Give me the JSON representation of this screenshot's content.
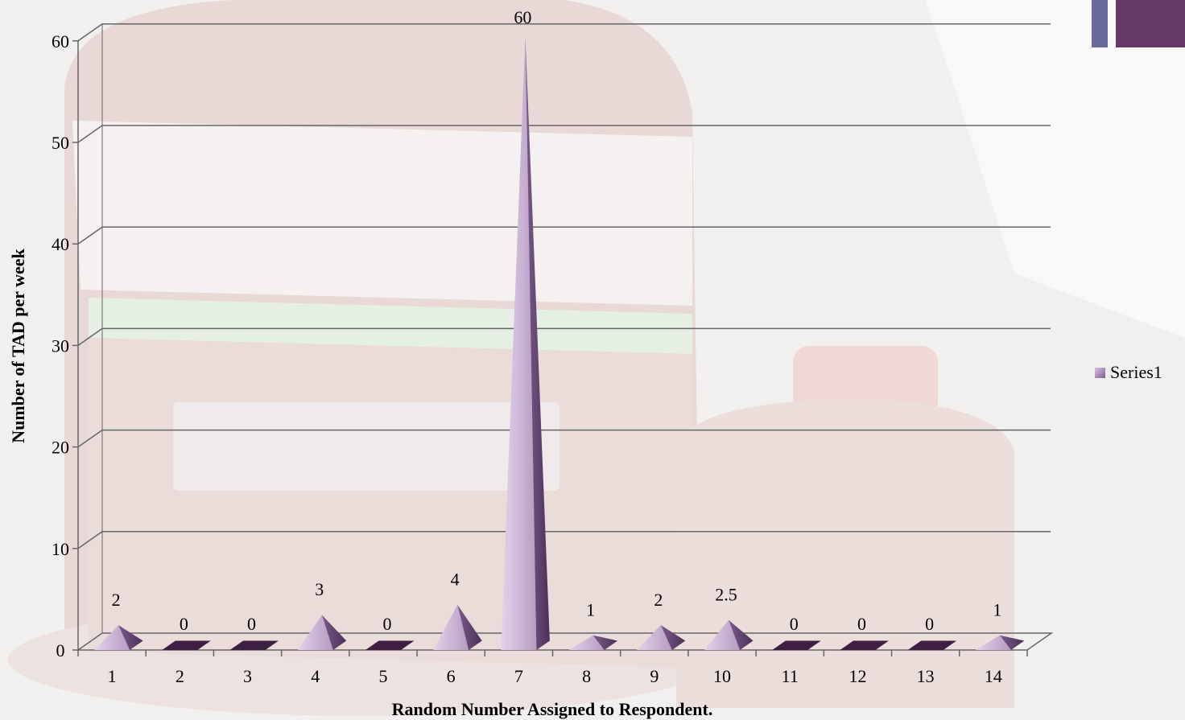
{
  "chart_data": {
    "type": "bar",
    "style": "3d-pyramid",
    "categories": [
      "1",
      "2",
      "3",
      "4",
      "5",
      "6",
      "7",
      "8",
      "9",
      "10",
      "11",
      "12",
      "13",
      "14"
    ],
    "series": [
      {
        "name": "Series1",
        "values": [
          2,
          0,
          0,
          3,
          0,
          4,
          60,
          1,
          2,
          2.5,
          0,
          0,
          0,
          1
        ]
      }
    ],
    "data_labels": [
      "2",
      "0",
      "0",
      "3",
      "0",
      "4",
      "60",
      "1",
      "2",
      "2.5",
      "0",
      "0",
      "0",
      "1"
    ],
    "xlabel": "Random Number Assigned to Respondent.",
    "ylabel": "Number of TAD per week",
    "ylim": [
      0,
      60
    ],
    "yticks": [
      0,
      10,
      20,
      30,
      40,
      50,
      60
    ],
    "grid": true,
    "legend": {
      "position": "right"
    }
  },
  "colors": {
    "pyramid_light": "#d8c2e1",
    "pyramid_mid": "#a98bb6",
    "pyramid_dark": "#5a3e69",
    "flat_marker": "#3c1f42",
    "gridline": "#666666",
    "corner_blue": "#6b6a9c",
    "corner_purple": "#643a69",
    "background": "#f1efee"
  },
  "icons": {
    "legend_swatch": "pyramid-swatch-icon"
  }
}
